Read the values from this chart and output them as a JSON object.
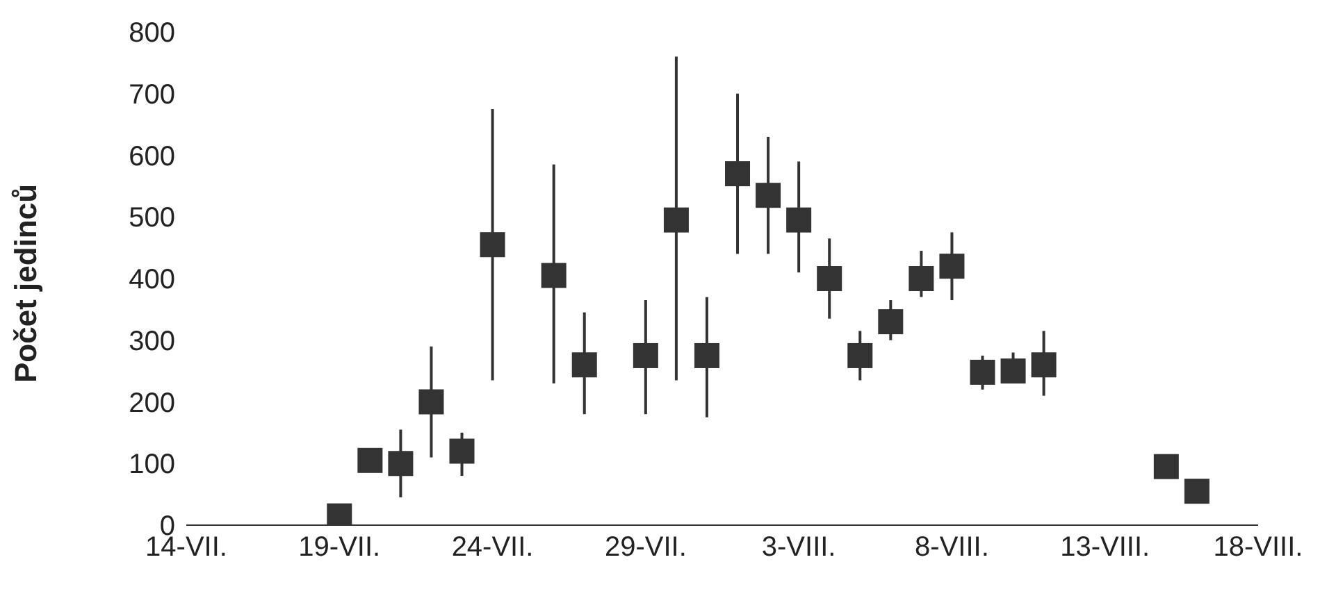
{
  "chart_data": {
    "type": "scatter",
    "ylabel": "Počet jedinců",
    "marker": "square",
    "grid": false,
    "legend": false,
    "x": [
      "--07-19",
      "--07-20",
      "--07-21",
      "--07-22",
      "--07-23",
      "--07-24",
      "--07-26",
      "--07-27",
      "--07-29",
      "--07-30",
      "--07-31",
      "--08-01",
      "--08-02",
      "--08-03",
      "--08-04",
      "--08-05",
      "--08-06",
      "--08-07",
      "--08-08",
      "--08-09",
      "--08-10",
      "--08-11",
      "--08-15",
      "--08-16"
    ],
    "series": [
      {
        "color": "#333333",
        "values": [
          15,
          105,
          100,
          200,
          120,
          455,
          405,
          260,
          275,
          495,
          275,
          570,
          535,
          495,
          400,
          275,
          330,
          400,
          420,
          248,
          250,
          260,
          95,
          55
        ],
        "errors": [
          null,
          null,
          [
            45,
            155
          ],
          [
            110,
            290
          ],
          [
            80,
            150
          ],
          [
            235,
            675
          ],
          [
            230,
            585
          ],
          [
            180,
            345
          ],
          [
            180,
            365
          ],
          [
            235,
            760
          ],
          [
            175,
            370
          ],
          [
            440,
            700
          ],
          [
            440,
            630
          ],
          [
            410,
            590
          ],
          [
            335,
            465
          ],
          [
            235,
            315
          ],
          [
            300,
            365
          ],
          [
            370,
            445
          ],
          [
            365,
            475
          ],
          [
            220,
            275
          ],
          [
            230,
            280
          ],
          [
            210,
            315
          ],
          null,
          null
        ]
      }
    ],
    "xlim": [
      "--07-14",
      "--08-18"
    ],
    "xticks": [
      {
        "value": "--07-14",
        "label": "14-VII."
      },
      {
        "value": "--07-19",
        "label": "19-VII."
      },
      {
        "value": "--07-24",
        "label": "24-VII."
      },
      {
        "value": "--07-29",
        "label": "29-VII."
      },
      {
        "value": "--08-03",
        "label": "3-VIII."
      },
      {
        "value": "--08-08",
        "label": "8-VIII."
      },
      {
        "value": "--08-13",
        "label": "13-VIII."
      },
      {
        "value": "--08-18",
        "label": "18-VIII."
      }
    ],
    "ylim": [
      0,
      800
    ],
    "yticks": [
      0,
      100,
      200,
      300,
      400,
      500,
      600,
      700,
      800
    ]
  }
}
